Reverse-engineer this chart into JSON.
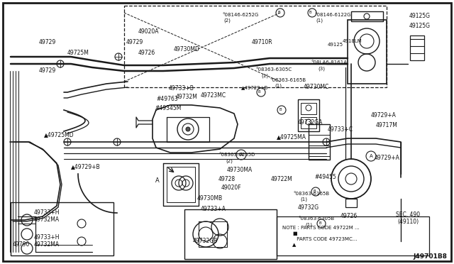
{
  "fig_width": 6.4,
  "fig_height": 3.72,
  "dpi": 100,
  "background_color": "#f5f5f5",
  "line_color": "#1a1a1a",
  "border_color": "#000000",
  "diagram_id": "J49701B8",
  "sec_label": "SEC. 490\n(49110)",
  "note_text": "NOTE : PARTS CODE 49722M ... ■\n         PARTS CODE 49723MC... ▲"
}
